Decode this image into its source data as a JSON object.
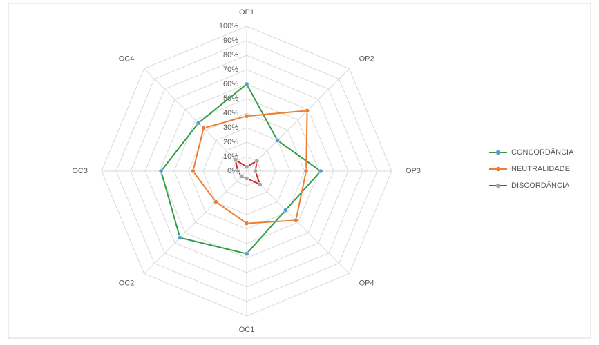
{
  "chart_data": {
    "type": "radar",
    "categories": [
      "OP1",
      "OP2",
      "OP3",
      "OP4",
      "OC1",
      "OC2",
      "OC3",
      "OC4"
    ],
    "series": [
      {
        "name": "CONCORDÂNCIA",
        "color": "#2e9e44",
        "marker_color": "#5b9bd5",
        "values": [
          60,
          30,
          51,
          38,
          57,
          65,
          59,
          47
        ]
      },
      {
        "name": "NEUTRALIDADE",
        "color": "#ed7d31",
        "marker_color": "#ed7d31",
        "values": [
          38,
          59,
          41,
          48,
          36,
          30,
          37,
          42
        ]
      },
      {
        "name": "DISCORDÂNCIA",
        "color": "#d62728",
        "marker_color": "#a5a5a5",
        "values": [
          3,
          10,
          6,
          13,
          5,
          5,
          6,
          11
        ]
      }
    ],
    "ylim": [
      0,
      100
    ],
    "yticks": [
      {
        "value": 0,
        "label": "0%"
      },
      {
        "value": 10,
        "label": "10%"
      },
      {
        "value": 20,
        "label": "20%"
      },
      {
        "value": 30,
        "label": "30%"
      },
      {
        "value": 40,
        "label": "40%"
      },
      {
        "value": 50,
        "label": "50%"
      },
      {
        "value": 60,
        "label": "60%"
      },
      {
        "value": 70,
        "label": "70%"
      },
      {
        "value": 80,
        "label": "80%"
      },
      {
        "value": 90,
        "label": "90%"
      },
      {
        "value": 100,
        "label": "100%"
      }
    ],
    "grid": true,
    "legend": "right"
  }
}
